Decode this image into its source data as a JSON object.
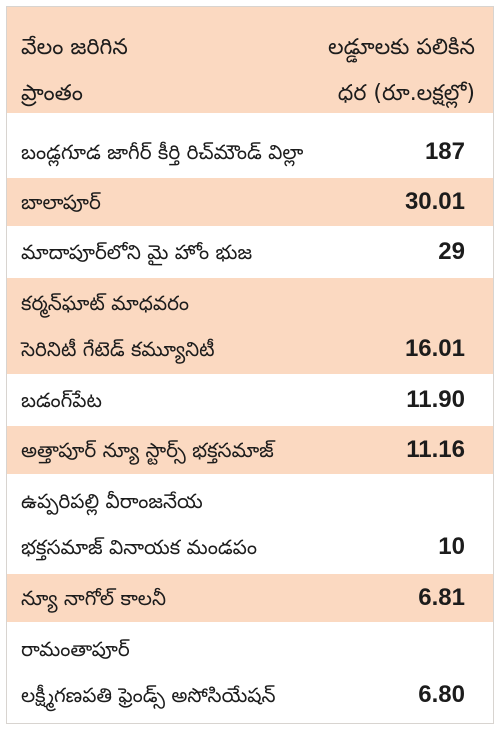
{
  "header": {
    "left_line1": "వేలం జరిగిన",
    "left_line2": "ప్రాంతం",
    "right_line1": "లడ్డూలకు పలికిన",
    "right_line2": "ధర (రూ.లక్షల్లో)"
  },
  "rows": [
    {
      "name_line1": "బండ్లగూడ జాగీర్ కీర్తి రిచ్‌మౌండ్ విల్లా",
      "name_line2": "",
      "value": "187"
    },
    {
      "name_line1": "బాలాపూర్",
      "name_line2": "",
      "value": "30.01"
    },
    {
      "name_line1": "మాదాపూర్‌లోని మై హోం భుజ",
      "name_line2": "",
      "value": "29"
    },
    {
      "name_line1": "కర్మన్‌ఘాట్ మాధవరం",
      "name_line2": "సెరినిటీ గేటెడ్ కమ్యూనిటీ",
      "value": "16.01"
    },
    {
      "name_line1": "బడంగ్‌పేట",
      "name_line2": "",
      "value": "11.90"
    },
    {
      "name_line1": "అత్తాపూర్ న్యూ స్టార్స్ భక్తసమాజ్",
      "name_line2": "",
      "value": "11.16"
    },
    {
      "name_line1": "ఉప్పరిపల్లి వీరాంజనేయ",
      "name_line2": "భక్తసమాజ్ వినాయక మండపం",
      "value": "10"
    },
    {
      "name_line1": "న్యూ నాగోల్ కాలనీ",
      "name_line2": "",
      "value": "6.81"
    },
    {
      "name_line1": "రామంతాపూర్",
      "name_line2": "లక్ష్మీగణపతి ఫ్రెండ్స్ అసోసియేషన్",
      "value": "6.80"
    }
  ]
}
